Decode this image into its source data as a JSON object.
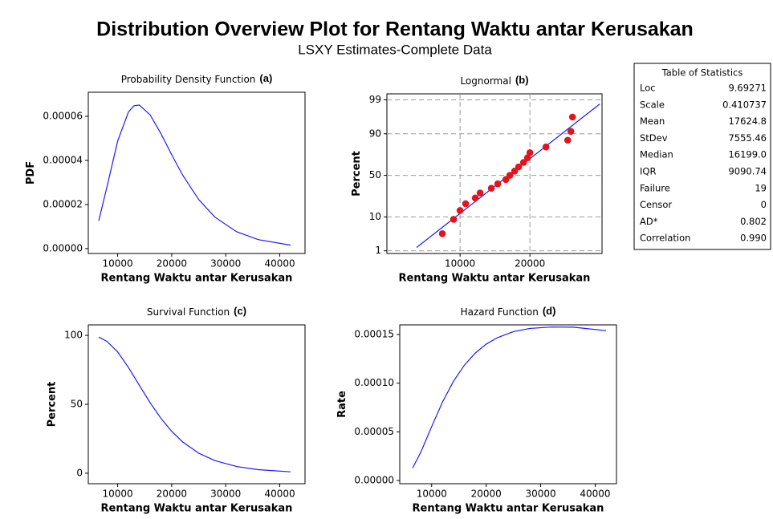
{
  "title": "Distribution Overview Plot for Rentang Waktu antar Kerusakan",
  "subtitle": "LSXY Estimates-Complete Data",
  "statistics_table": {
    "title": "Table of Statistics",
    "rows": [
      [
        "Loc",
        "9.69271"
      ],
      [
        "Scale",
        "0.410737"
      ],
      [
        "Mean",
        "17624.8"
      ],
      [
        "StDev",
        "7555.46"
      ],
      [
        "Median",
        "16199.0"
      ],
      [
        "IQR",
        "9090.74"
      ],
      [
        "Failure",
        "19"
      ],
      [
        "Censor",
        "0"
      ],
      [
        "AD*",
        "0.802"
      ],
      [
        "Correlation",
        "0.990"
      ]
    ]
  },
  "chart_data": [
    {
      "type": "line",
      "title": "Probability Density Function",
      "panel_label": "(a)",
      "x_label": "Rentang Waktu antar Kerusakan",
      "y_label": "PDF",
      "color": "#1a1aff",
      "x": [
        6500,
        8000,
        10000,
        12000,
        13000,
        14000,
        16000,
        18000,
        20000,
        22000,
        25000,
        28000,
        32000,
        36000,
        42000
      ],
      "values": [
        1.262e-05,
        2.777e-05,
        4.874e-05,
        6.198e-05,
        6.473e-05,
        6.513e-05,
        6.068e-05,
        5.221e-05,
        4.257e-05,
        3.344e-05,
        2.224e-05,
        1.428e-05,
        7.68e-06,
        4.08e-06,
        1.57e-06
      ],
      "xlim": [
        4570,
        44670
      ],
      "xticks": [
        10000,
        20000,
        30000,
        40000
      ],
      "ylim": [
        -2.2e-06,
        7.09e-05
      ],
      "yticks": [
        {
          "value": 0,
          "label": "0.00000"
        },
        2e-05,
        4e-05,
        6e-05
      ]
    },
    {
      "type": "probability",
      "title": "Lognormal",
      "panel_label": "(b)",
      "x_label": "Rentang Waktu antar Kerusakan",
      "y_label": "Percent",
      "xscale": "log",
      "yscale": "normal",
      "grid": true,
      "xlim": [
        4840,
        40900
      ],
      "xticks": [
        10000,
        20000
      ],
      "ylim": [
        0.8,
        99.4
      ],
      "yticks": [
        1,
        10,
        50,
        90,
        99
      ],
      "series": [
        {
          "style": "line",
          "color": "#1a1aff",
          "x": [
            6500,
            40000
          ],
          "values": [
            1.31,
            98.61
          ]
        },
        {
          "style": "points",
          "color": "#e3141c",
          "x": [
            8390,
            9380,
            10000,
            10570,
            11630,
            12200,
            13640,
            14540,
            15750,
            16390,
            17190,
            17890,
            18770,
            19530,
            20000,
            23460,
            29090,
            30030,
            30510
          ],
          "values": [
            3.61,
            8.76,
            13.92,
            19.07,
            24.23,
            29.38,
            34.54,
            39.69,
            44.85,
            50,
            55.15,
            60.31,
            65.46,
            70.62,
            75.77,
            80.93,
            86.08,
            91.24,
            96.39
          ]
        }
      ]
    },
    {
      "type": "line",
      "title": "Survival Function",
      "panel_label": "(c)",
      "x_label": "Rentang Waktu antar Kerusakan",
      "y_label": "Percent",
      "color": "#1a1aff",
      "x": [
        6500,
        8000,
        10000,
        12000,
        14000,
        16000,
        18000,
        20000,
        22000,
        25000,
        28000,
        32000,
        36000,
        42000
      ],
      "values": [
        98.69,
        95.71,
        87.99,
        76.75,
        63.88,
        51.2,
        39.87,
        30.39,
        22.81,
        14.54,
        9.14,
        4.87,
        2.59,
        1.02
      ],
      "xlim": [
        4570,
        44670
      ],
      "xticks": [
        10000,
        20000,
        30000,
        40000
      ],
      "ylim": [
        -7.6,
        107.6
      ],
      "yticks": [
        0,
        50,
        100
      ]
    },
    {
      "type": "line",
      "title": "Hazard Function",
      "panel_label": "(d)",
      "x_label": "Rentang Waktu antar Kerusakan",
      "y_label": "Rate",
      "color": "#1a1aff",
      "x": [
        6500,
        8000,
        10000,
        12000,
        14000,
        16000,
        18000,
        20000,
        22000,
        25000,
        28000,
        32000,
        36000,
        42000
      ],
      "values": [
        1.279e-05,
        2.902e-05,
        5.539e-05,
        8.076e-05,
        0.00010196,
        0.00011852,
        0.00013095,
        0.00014008,
        0.0001466,
        0.00015296,
        0.00015624,
        0.0001577,
        0.0001575,
        0.000154
      ],
      "xlim": [
        4140,
        43910
      ],
      "xticks": [
        10000,
        20000,
        30000,
        40000
      ],
      "ylim": [
        -3.3e-06,
        0.0001599
      ],
      "yticks": [
        {
          "value": 0,
          "label": "0.00000"
        },
        5e-05,
        {
          "value": 0.0001,
          "label": "0.00010"
        },
        0.00015
      ]
    }
  ]
}
